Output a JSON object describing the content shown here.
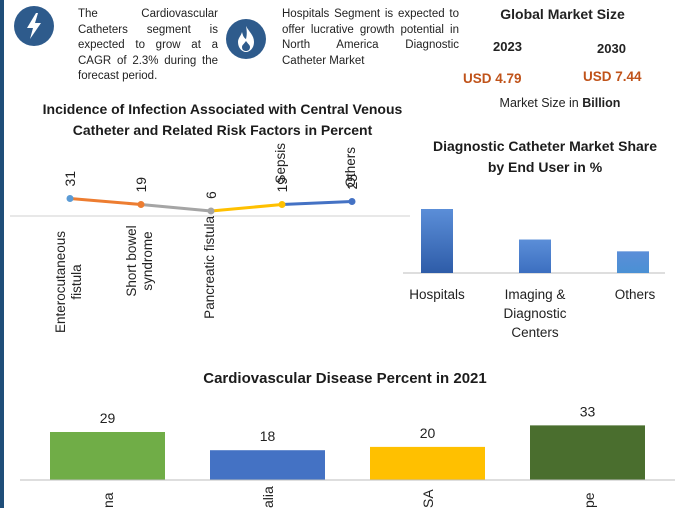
{
  "info_blocks": [
    {
      "icon": "lightning-icon",
      "text": "The Cardiovascular Catheters segment is expected to grow at a CAGR of 2.3% during the forecast period."
    },
    {
      "icon": "flame-icon",
      "text": "Hospitals Segment is expected to offer lucrative growth potential in North America Diagnostic Catheter Market"
    }
  ],
  "market_size": {
    "title": "Global Market Size",
    "years": [
      "2023",
      "2030"
    ],
    "values": [
      "USD 4.79",
      "USD 7.44"
    ],
    "unit_prefix": "Market Size in",
    "unit_bold": "Billion"
  },
  "colors": {
    "accent": "#2e5b8c",
    "value_orange": "#c0531a"
  },
  "chart_data": [
    {
      "type": "line",
      "title": "Incidence of Infection Associated with Central Venous Catheter and Related Risk Factors in Percent",
      "categories": [
        "Enterocutaneous fistula",
        "Short bowel syndrome",
        "Pancreatic fistula",
        "Sepsis",
        "Others"
      ],
      "values": [
        31,
        19,
        6,
        19,
        25
      ],
      "data_labels": [
        "31",
        "19",
        "6",
        "19",
        "25"
      ],
      "ylim": [
        0,
        35
      ],
      "segment_colors": [
        "#ed7d31",
        "#a5a5a5",
        "#ffc000",
        "#4472c4"
      ],
      "point_colors": [
        "#5b9bd5",
        "#ed7d31",
        "#a5a5a5",
        "#ffc000",
        "#4472c4"
      ],
      "grid": false
    },
    {
      "type": "bar",
      "title": "Diagnostic Catheter Market Share by End User in %",
      "categories": [
        "Hospitals",
        "Imaging & Diagnostic Centers",
        "Others"
      ],
      "values": [
        65,
        34,
        22
      ],
      "ylim": [
        0,
        80
      ],
      "colors": [
        "#2e5ca8",
        "#3c6fc0",
        "#4a90d4"
      ],
      "grid": false
    },
    {
      "type": "bar",
      "title": "Cardiovascular Disease Percent in 2021",
      "categories": [
        "na",
        "alia",
        "SA",
        "pe"
      ],
      "values": [
        29,
        18,
        20,
        33
      ],
      "data_labels": [
        "29",
        "18",
        "20",
        "33"
      ],
      "ylim": [
        0,
        45
      ],
      "colors": [
        "#70ad47",
        "#4472c4",
        "#ffc000",
        "#4a6e2e"
      ],
      "grid": false
    }
  ]
}
